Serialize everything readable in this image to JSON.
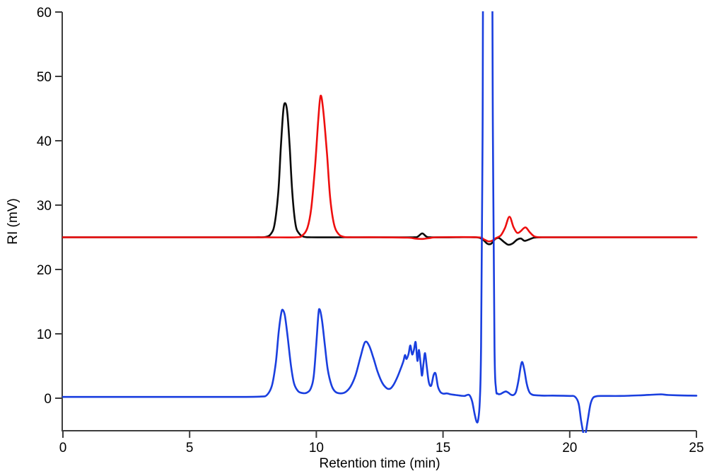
{
  "chart_data": {
    "type": "line",
    "title": "",
    "xlabel": "Retention time (min)",
    "ylabel": "RI (mV)",
    "xlim": [
      0,
      25
    ],
    "ylim": [
      -5,
      60
    ],
    "x_ticks": [
      0,
      5,
      10,
      15,
      20,
      25
    ],
    "y_ticks": [
      0,
      10,
      20,
      30,
      40,
      50,
      60
    ],
    "grid": false,
    "legend": "none",
    "axis_color": "#3d3d3d",
    "background_color": "#ffffff",
    "series": [
      {
        "name": "black-trace",
        "color": "#0a0a0a",
        "baseline_mV": 25,
        "peaks": [
          {
            "t_min": 8.78,
            "mV": 45.8
          },
          {
            "t_min": 14.2,
            "mV": 25.6
          }
        ],
        "points": [
          [
            0,
            25
          ],
          [
            2,
            25
          ],
          [
            4,
            25
          ],
          [
            6,
            25
          ],
          [
            7.6,
            25
          ],
          [
            8.0,
            25.05
          ],
          [
            8.2,
            25.5
          ],
          [
            8.35,
            27
          ],
          [
            8.5,
            32
          ],
          [
            8.6,
            39
          ],
          [
            8.7,
            44.8
          ],
          [
            8.78,
            45.8
          ],
          [
            8.86,
            44.2
          ],
          [
            8.95,
            39
          ],
          [
            9.05,
            32
          ],
          [
            9.18,
            27
          ],
          [
            9.32,
            25.6
          ],
          [
            9.5,
            25.1
          ],
          [
            9.8,
            25
          ],
          [
            11,
            25
          ],
          [
            12.5,
            25
          ],
          [
            13.8,
            25
          ],
          [
            14.0,
            25.1
          ],
          [
            14.18,
            25.6
          ],
          [
            14.35,
            25.1
          ],
          [
            14.55,
            25
          ],
          [
            15.5,
            25
          ],
          [
            16.3,
            25
          ],
          [
            16.55,
            24.7
          ],
          [
            16.75,
            24.0
          ],
          [
            16.9,
            24.0
          ],
          [
            17.05,
            24.7
          ],
          [
            17.2,
            24.9
          ],
          [
            17.4,
            24.3
          ],
          [
            17.57,
            23.85
          ],
          [
            17.75,
            24.05
          ],
          [
            17.93,
            24.65
          ],
          [
            18.08,
            24.8
          ],
          [
            18.22,
            24.45
          ],
          [
            18.42,
            24.7
          ],
          [
            18.6,
            24.95
          ],
          [
            18.9,
            25
          ],
          [
            20,
            25
          ],
          [
            22,
            25
          ],
          [
            24,
            25
          ],
          [
            25,
            25
          ]
        ]
      },
      {
        "name": "red-trace",
        "color": "#ee0f0f",
        "baseline_mV": 25,
        "peaks": [
          {
            "t_min": 10.17,
            "mV": 47.0
          },
          {
            "t_min": 17.62,
            "mV": 28.2
          },
          {
            "t_min": 18.28,
            "mV": 26.5
          }
        ],
        "points": [
          [
            0,
            25
          ],
          [
            2,
            25
          ],
          [
            4,
            25
          ],
          [
            6,
            25
          ],
          [
            8,
            25
          ],
          [
            9.2,
            25
          ],
          [
            9.45,
            25.3
          ],
          [
            9.65,
            26.5
          ],
          [
            9.8,
            29.5
          ],
          [
            9.95,
            36
          ],
          [
            10.08,
            43.5
          ],
          [
            10.17,
            47
          ],
          [
            10.28,
            44.5
          ],
          [
            10.42,
            38
          ],
          [
            10.55,
            31
          ],
          [
            10.7,
            27
          ],
          [
            10.88,
            25.5
          ],
          [
            11.1,
            25.05
          ],
          [
            11.4,
            25
          ],
          [
            12.5,
            25
          ],
          [
            13.6,
            24.95
          ],
          [
            13.9,
            24.8
          ],
          [
            14.2,
            24.75
          ],
          [
            14.5,
            24.9
          ],
          [
            14.8,
            25
          ],
          [
            16.35,
            25
          ],
          [
            16.6,
            24.7
          ],
          [
            16.8,
            24.35
          ],
          [
            16.95,
            24.5
          ],
          [
            17.1,
            24.9
          ],
          [
            17.28,
            25.3
          ],
          [
            17.45,
            26.5
          ],
          [
            17.62,
            28.2
          ],
          [
            17.78,
            26.6
          ],
          [
            17.92,
            25.7
          ],
          [
            18.05,
            25.9
          ],
          [
            18.18,
            26.4
          ],
          [
            18.28,
            26.5
          ],
          [
            18.42,
            25.8
          ],
          [
            18.58,
            25.2
          ],
          [
            18.75,
            25.02
          ],
          [
            19,
            25
          ],
          [
            20.5,
            25
          ],
          [
            22,
            25
          ],
          [
            24,
            25
          ],
          [
            25,
            25
          ]
        ]
      },
      {
        "name": "blue-trace",
        "color": "#1a3fdf",
        "baseline_mV": 0,
        "peaks": [
          {
            "t_min": 8.68,
            "mV": 13.7
          },
          {
            "t_min": 10.13,
            "mV": 13.8
          },
          {
            "t_min": 11.92,
            "mV": 8.7
          },
          {
            "t_min": 13.71,
            "mV": 8.2
          },
          {
            "t_min": 13.92,
            "mV": 8.7
          },
          {
            "t_min": 14.29,
            "mV": 7.0
          },
          {
            "t_min": 16.35,
            "mV": -3.7
          },
          {
            "t_min": 16.78,
            "mV": 60,
            "note": "off-scale, clipped at 60"
          },
          {
            "t_min": 18.13,
            "mV": 5.6
          },
          {
            "t_min": 20.58,
            "mV": -5.5,
            "note": "negative dip, clipped"
          }
        ],
        "points": [
          [
            0,
            0.2
          ],
          [
            1,
            0.2
          ],
          [
            2,
            0.2
          ],
          [
            3,
            0.2
          ],
          [
            4,
            0.2
          ],
          [
            5,
            0.2
          ],
          [
            6,
            0.2
          ],
          [
            7,
            0.2
          ],
          [
            7.8,
            0.25
          ],
          [
            8.05,
            0.5
          ],
          [
            8.25,
            2
          ],
          [
            8.4,
            5.5
          ],
          [
            8.52,
            10.5
          ],
          [
            8.62,
            13.3
          ],
          [
            8.68,
            13.7
          ],
          [
            8.76,
            12.8
          ],
          [
            8.87,
            9.5
          ],
          [
            9.0,
            5
          ],
          [
            9.12,
            2.3
          ],
          [
            9.28,
            1.1
          ],
          [
            9.45,
            0.8
          ],
          [
            9.62,
            0.85
          ],
          [
            9.78,
            1.5
          ],
          [
            9.9,
            3.5
          ],
          [
            10.0,
            8.5
          ],
          [
            10.08,
            13
          ],
          [
            10.13,
            13.8
          ],
          [
            10.22,
            12.2
          ],
          [
            10.33,
            8.5
          ],
          [
            10.45,
            4.5
          ],
          [
            10.6,
            2
          ],
          [
            10.75,
            1.0
          ],
          [
            10.95,
            0.75
          ],
          [
            11.15,
            0.95
          ],
          [
            11.35,
            1.8
          ],
          [
            11.55,
            3.6
          ],
          [
            11.75,
            6.5
          ],
          [
            11.92,
            8.7
          ],
          [
            12.08,
            8.2
          ],
          [
            12.25,
            6.3
          ],
          [
            12.42,
            4.1
          ],
          [
            12.6,
            2.4
          ],
          [
            12.78,
            1.55
          ],
          [
            12.92,
            1.5
          ],
          [
            13.05,
            2.1
          ],
          [
            13.2,
            3.3
          ],
          [
            13.35,
            4.8
          ],
          [
            13.44,
            5.8
          ],
          [
            13.5,
            6.7
          ],
          [
            13.56,
            6.1
          ],
          [
            13.64,
            6.9
          ],
          [
            13.71,
            8.2
          ],
          [
            13.78,
            6.8
          ],
          [
            13.85,
            7.5
          ],
          [
            13.92,
            8.7
          ],
          [
            13.99,
            5.8
          ],
          [
            14.05,
            7.5
          ],
          [
            14.12,
            5.2
          ],
          [
            14.17,
            3.5
          ],
          [
            14.23,
            5.4
          ],
          [
            14.29,
            7.0
          ],
          [
            14.36,
            4.8
          ],
          [
            14.44,
            2.5
          ],
          [
            14.53,
            1.95
          ],
          [
            14.63,
            3.6
          ],
          [
            14.71,
            3.8
          ],
          [
            14.8,
            1.8
          ],
          [
            14.9,
            0.95
          ],
          [
            15.02,
            0.7
          ],
          [
            15.15,
            0.75
          ],
          [
            15.3,
            0.6
          ],
          [
            15.5,
            0.5
          ],
          [
            15.7,
            0.4
          ],
          [
            15.85,
            0.35
          ],
          [
            15.95,
            0.5
          ],
          [
            16.05,
            0.45
          ],
          [
            16.15,
            -0.5
          ],
          [
            16.25,
            -2.5
          ],
          [
            16.33,
            -3.7
          ],
          [
            16.39,
            -3.3
          ],
          [
            16.45,
            -0.5
          ],
          [
            16.5,
            8
          ],
          [
            16.56,
            40
          ],
          [
            16.62,
            80
          ],
          [
            16.9,
            80
          ],
          [
            16.97,
            40
          ],
          [
            17.03,
            8
          ],
          [
            17.09,
            1.5
          ],
          [
            17.16,
            0.7
          ],
          [
            17.26,
            0.65
          ],
          [
            17.38,
            0.9
          ],
          [
            17.48,
            1.05
          ],
          [
            17.58,
            0.85
          ],
          [
            17.68,
            0.55
          ],
          [
            17.78,
            0.5
          ],
          [
            17.88,
            1.0
          ],
          [
            17.98,
            2.8
          ],
          [
            18.07,
            5.0
          ],
          [
            18.13,
            5.6
          ],
          [
            18.21,
            4.4
          ],
          [
            18.3,
            2.3
          ],
          [
            18.4,
            1.0
          ],
          [
            18.52,
            0.55
          ],
          [
            18.7,
            0.45
          ],
          [
            19.0,
            0.4
          ],
          [
            19.5,
            0.4
          ],
          [
            20.0,
            0.35
          ],
          [
            20.2,
            0.25
          ],
          [
            20.35,
            -0.8
          ],
          [
            20.45,
            -3.5
          ],
          [
            20.55,
            -5.6
          ],
          [
            20.62,
            -5.6
          ],
          [
            20.72,
            -3.2
          ],
          [
            20.82,
            -0.9
          ],
          [
            20.92,
            0.05
          ],
          [
            21.05,
            0.3
          ],
          [
            21.3,
            0.35
          ],
          [
            22,
            0.35
          ],
          [
            22.8,
            0.45
          ],
          [
            23.3,
            0.55
          ],
          [
            23.6,
            0.6
          ],
          [
            23.9,
            0.5
          ],
          [
            24.5,
            0.42
          ],
          [
            25,
            0.4
          ]
        ]
      }
    ]
  }
}
